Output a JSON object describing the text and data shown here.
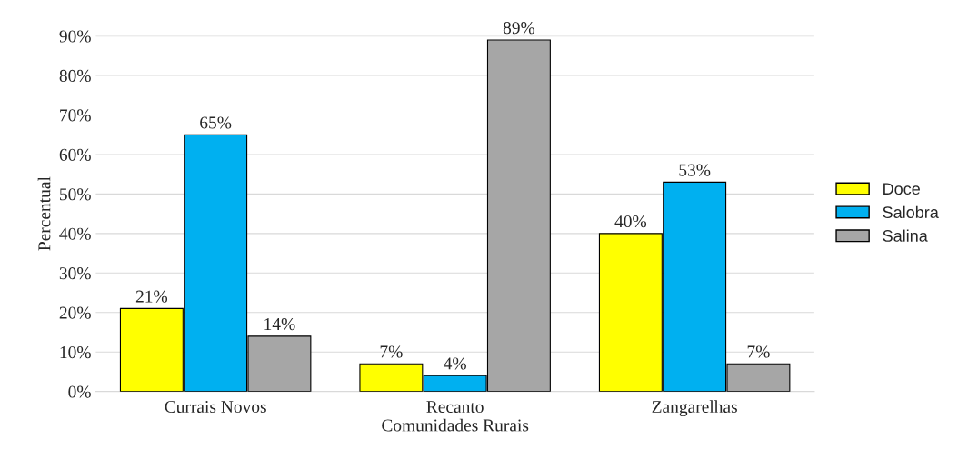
{
  "chart_data": {
    "type": "bar",
    "xlabel": "Comunidades Rurais",
    "ylabel": "Percentual",
    "categories": [
      "Currais Novos",
      "Recanto",
      "Zangarelhas"
    ],
    "series": [
      {
        "name": "Doce",
        "color": "#ffff00",
        "values": [
          21,
          7,
          40
        ],
        "value_labels": [
          "21%",
          "7%",
          "40%"
        ]
      },
      {
        "name": "Salobra",
        "color": "#00b0f0",
        "values": [
          65,
          4,
          53
        ],
        "value_labels": [
          "65%",
          "4%",
          "53%"
        ]
      },
      {
        "name": "Salina",
        "color": "#a6a6a6",
        "values": [
          14,
          89,
          7
        ],
        "value_labels": [
          "14%",
          "89%",
          "7%"
        ]
      }
    ],
    "ylim": [
      0,
      90
    ],
    "yticks": [
      {
        "value": 0,
        "label": "0%"
      },
      {
        "value": 10,
        "label": "10%"
      },
      {
        "value": 20,
        "label": "20%"
      },
      {
        "value": 30,
        "label": "30%"
      },
      {
        "value": 40,
        "label": "40%"
      },
      {
        "value": 50,
        "label": "50%"
      },
      {
        "value": 60,
        "label": "60%"
      },
      {
        "value": 70,
        "label": "70%"
      },
      {
        "value": 80,
        "label": "80%"
      },
      {
        "value": 90,
        "label": "90%"
      }
    ],
    "grid": "y",
    "legend": "right"
  }
}
